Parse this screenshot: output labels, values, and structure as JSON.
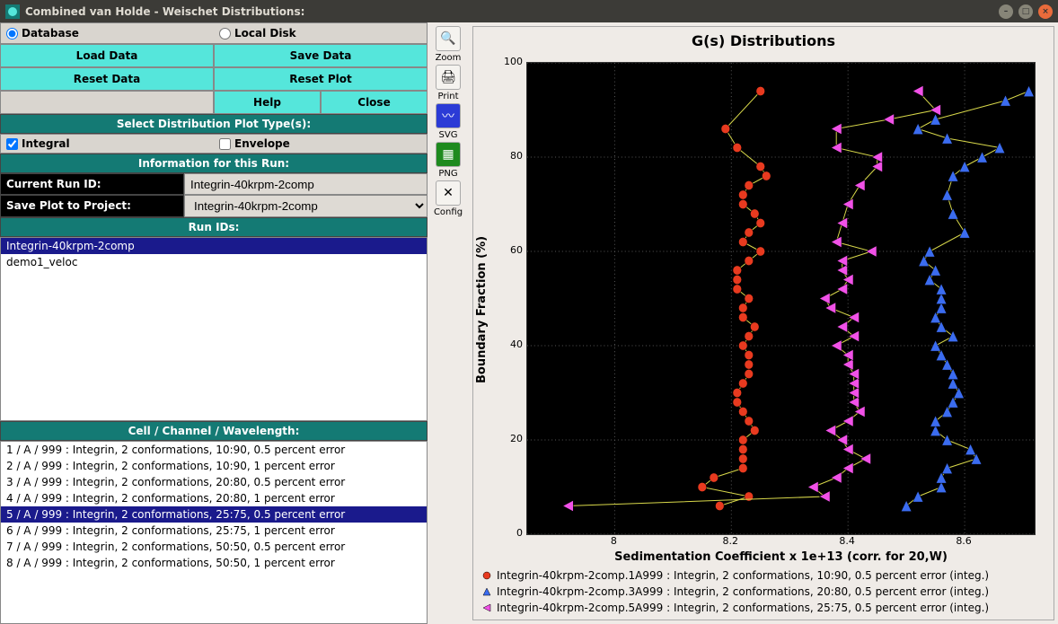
{
  "window": {
    "title": "Combined van Holde - Weischet Distributions:"
  },
  "source": {
    "database_label": "Database",
    "localdisk_label": "Local Disk",
    "selected": "database"
  },
  "buttons": {
    "load": "Load Data",
    "save": "Save Data",
    "resetdata": "Reset Data",
    "resetplot": "Reset Plot",
    "help": "Help",
    "close": "Close"
  },
  "sections": {
    "plottype": "Select Distribution Plot Type(s):",
    "runinfo": "Information for this Run:",
    "runids": "Run IDs:",
    "ccw": "Cell / Channel / Wavelength:"
  },
  "plottype": {
    "integral_label": "Integral",
    "integral_checked": true,
    "envelope_label": "Envelope",
    "envelope_checked": false
  },
  "runinfo": {
    "current_label": "Current Run ID:",
    "current_value": "Integrin-40krpm-2comp",
    "saveplot_label": "Save Plot to Project:",
    "saveplot_value": "Integrin-40krpm-2comp"
  },
  "runids": {
    "items": [
      "Integrin-40krpm-2comp",
      "demo1_veloc"
    ],
    "selected_index": 0
  },
  "ccw": {
    "items": [
      "1 / A / 999 : Integrin, 2 conformations, 10:90, 0.5 percent error",
      "2 / A / 999 : Integrin, 2 conformations, 10:90, 1 percent error",
      "3 / A / 999 : Integrin, 2 conformations, 20:80, 0.5 percent error",
      "4 / A / 999 : Integrin, 2 conformations, 20:80, 1 percent error",
      "5 / A / 999 : Integrin, 2 conformations, 25:75, 0.5 percent error",
      "6 / A / 999 : Integrin, 2 conformations, 25:75, 1 percent error",
      "7 / A / 999 : Integrin, 2 conformations, 50:50, 0.5 percent error",
      "8 / A / 999 : Integrin, 2 conformations, 50:50, 1 percent error"
    ],
    "selected_index": 4
  },
  "toolbar": {
    "zoom": "Zoom",
    "print": "Print",
    "svg": "SVG",
    "png": "PNG",
    "config": "Config"
  },
  "chart": {
    "title": "G(s) Distributions",
    "xlabel": "Sedimentation Coefficient x 1e+13 (corr. for 20,W)",
    "ylabel": "Boundary Fraction (%)",
    "xlim": [
      7.85,
      8.72
    ],
    "ylim": [
      0,
      100
    ],
    "xticks": [
      8.0,
      8.2,
      8.4,
      8.6
    ],
    "yticks": [
      0,
      20,
      40,
      60,
      80,
      100
    ],
    "background": "#000000",
    "grid_color": "#595959",
    "line_color": "#d8d84a",
    "tick_fontsize": 11,
    "series": [
      {
        "name": "Integrin-40krpm-2comp.1A999 : Integrin, 2 conformations, 10:90, 0.5 percent error (integ.)",
        "marker": "circle",
        "color": "#e83a1f",
        "size": 5,
        "x": [
          8.18,
          8.23,
          8.15,
          8.17,
          8.22,
          8.22,
          8.22,
          8.22,
          8.24,
          8.23,
          8.22,
          8.21,
          8.21,
          8.22,
          8.23,
          8.23,
          8.23,
          8.22,
          8.23,
          8.24,
          8.22,
          8.22,
          8.23,
          8.21,
          8.21,
          8.21,
          8.23,
          8.25,
          8.22,
          8.23,
          8.25,
          8.24,
          8.22,
          8.22,
          8.23,
          8.26,
          8.25,
          8.21,
          8.19,
          8.25
        ],
        "y": [
          6,
          8,
          10,
          12,
          14,
          16,
          18,
          20,
          22,
          24,
          26,
          28,
          30,
          32,
          34,
          36,
          38,
          40,
          42,
          44,
          46,
          48,
          50,
          52,
          54,
          56,
          58,
          60,
          62,
          64,
          66,
          68,
          70,
          72,
          74,
          76,
          78,
          82,
          86,
          94
        ]
      },
      {
        "name": "Integrin-40krpm-2comp.3A999 : Integrin, 2 conformations, 20:80, 0.5 percent error (integ.)",
        "marker": "triangle",
        "color": "#3b6cf0",
        "size": 6,
        "x": [
          8.5,
          8.52,
          8.56,
          8.56,
          8.57,
          8.62,
          8.61,
          8.57,
          8.55,
          8.55,
          8.57,
          8.58,
          8.59,
          8.58,
          8.58,
          8.57,
          8.56,
          8.55,
          8.58,
          8.56,
          8.55,
          8.56,
          8.56,
          8.56,
          8.54,
          8.55,
          8.53,
          8.54,
          8.6,
          8.58,
          8.57,
          8.58,
          8.6,
          8.63,
          8.66,
          8.57,
          8.52,
          8.55,
          8.67,
          8.71
        ],
        "y": [
          6,
          8,
          10,
          12,
          14,
          16,
          18,
          20,
          22,
          24,
          26,
          28,
          30,
          32,
          34,
          36,
          38,
          40,
          42,
          44,
          46,
          48,
          50,
          52,
          54,
          56,
          58,
          60,
          64,
          68,
          72,
          76,
          78,
          80,
          82,
          84,
          86,
          88,
          92,
          94
        ]
      },
      {
        "name": "Integrin-40krpm-2comp.5A999 : Integrin, 2 conformations, 25:75, 0.5 percent error (integ.)",
        "marker": "triangle-left",
        "color": "#f151e7",
        "size": 6,
        "x": [
          7.92,
          8.36,
          8.34,
          8.38,
          8.4,
          8.43,
          8.4,
          8.39,
          8.37,
          8.4,
          8.42,
          8.41,
          8.41,
          8.41,
          8.41,
          8.4,
          8.4,
          8.38,
          8.41,
          8.39,
          8.41,
          8.37,
          8.36,
          8.39,
          8.4,
          8.39,
          8.39,
          8.44,
          8.38,
          8.39,
          8.4,
          8.42,
          8.45,
          8.45,
          8.38,
          8.38,
          8.47,
          8.55,
          8.52
        ],
        "y": [
          6,
          8,
          10,
          12,
          14,
          16,
          18,
          20,
          22,
          24,
          26,
          28,
          30,
          32,
          34,
          36,
          38,
          40,
          42,
          44,
          46,
          48,
          50,
          52,
          54,
          56,
          58,
          60,
          62,
          66,
          70,
          74,
          78,
          80,
          82,
          86,
          88,
          90,
          94
        ]
      }
    ]
  }
}
